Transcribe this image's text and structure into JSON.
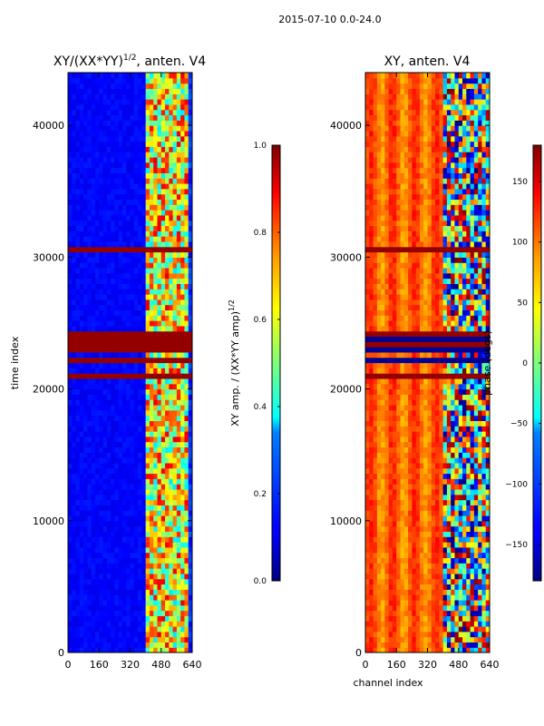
{
  "figure": {
    "suptitle": "2015-07-10 0.0-24.0"
  },
  "chart_data": [
    {
      "type": "heatmap",
      "title": "XY/(XX*YY)^{1/2}, anten. V4",
      "title_main": "XY/(XX*YY)",
      "title_sup": "1/2",
      "title_tail": ", anten. V4",
      "xlabel": "",
      "ylabel": "time index",
      "xlim": [
        0,
        640
      ],
      "ylim": [
        0,
        44000
      ],
      "x_ticks": [
        0,
        160,
        320,
        480,
        640
      ],
      "y_ticks": [
        0,
        10000,
        20000,
        30000,
        40000
      ],
      "colorbar": {
        "label": "XY amp. / (XX*YY amp)^{1/2}",
        "label_main": "XY amp. / (XX*YY amp)",
        "label_sup": "1/2",
        "range": [
          0.0,
          1.0
        ],
        "ticks": [
          "0.0",
          "0.2",
          "0.4",
          "0.6",
          "0.8",
          "1.0"
        ],
        "colormap": "jet"
      },
      "saturated_time_bands": [
        [
          20800,
          21200
        ],
        [
          22000,
          22500
        ],
        [
          22800,
          24200
        ],
        [
          30300,
          30700
        ]
      ],
      "channel_structure": "low amplitude (~0.1) for channels 0-400; high, variable amplitude (0.4-0.9) for channels 400-620"
    },
    {
      "type": "heatmap",
      "title": "XY, anten. V4",
      "xlabel": "channel index",
      "ylabel": "",
      "xlim": [
        0,
        640
      ],
      "ylim": [
        0,
        44000
      ],
      "x_ticks": [
        0,
        160,
        320,
        480,
        640
      ],
      "y_ticks": [
        0,
        10000,
        20000,
        30000,
        40000
      ],
      "colorbar": {
        "label": "phase (degs)",
        "range": [
          -180,
          180
        ],
        "ticks": [
          "−150",
          "−100",
          "−50",
          "0",
          "50",
          "100",
          "150"
        ],
        "colormap": "jet"
      },
      "saturated_time_bands": [
        [
          20800,
          21200
        ],
        [
          22000,
          22500
        ],
        [
          22800,
          24200
        ],
        [
          30300,
          30700
        ]
      ],
      "channel_structure": "phase ~ 60-140 degrees with vertical striping for channels 0-400; noisy phase spanning -180 to 180 for channels 400-640"
    }
  ]
}
